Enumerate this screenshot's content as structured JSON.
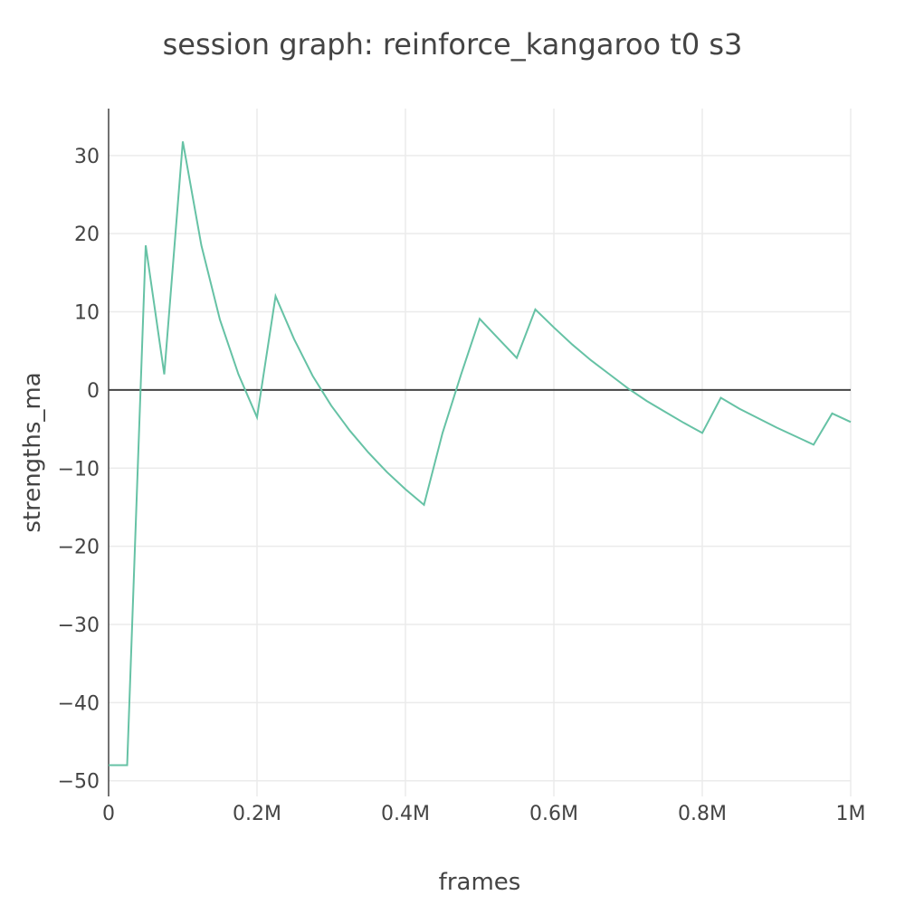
{
  "chart_data": {
    "type": "line",
    "title": "session graph: reinforce_kangaroo t0 s3",
    "xlabel": "frames",
    "ylabel": "strengths_ma",
    "xlim": [
      0,
      1000000
    ],
    "ylim": [
      -52,
      36
    ],
    "grid": true,
    "legend": "none",
    "x_ticks": [
      {
        "value": 0,
        "label": "0"
      },
      {
        "value": 200000,
        "label": "0.2M"
      },
      {
        "value": 400000,
        "label": "0.4M"
      },
      {
        "value": 600000,
        "label": "0.6M"
      },
      {
        "value": 800000,
        "label": "0.8M"
      },
      {
        "value": 1000000,
        "label": "1M"
      }
    ],
    "y_ticks": [
      {
        "value": 30,
        "label": "30"
      },
      {
        "value": 20,
        "label": "20"
      },
      {
        "value": 10,
        "label": "10"
      },
      {
        "value": 0,
        "label": "0"
      },
      {
        "value": -10,
        "label": "−10"
      },
      {
        "value": -20,
        "label": "−20"
      },
      {
        "value": -30,
        "label": "−30"
      },
      {
        "value": -40,
        "label": "−40"
      },
      {
        "value": -50,
        "label": "−50"
      }
    ],
    "series": [
      {
        "color": "#66c2a5",
        "points": [
          [
            0,
            -48
          ],
          [
            25000,
            -48
          ],
          [
            50000,
            18.5
          ],
          [
            75000,
            2
          ],
          [
            100000,
            31.8
          ],
          [
            125000,
            18.5
          ],
          [
            150000,
            9
          ],
          [
            175000,
            2
          ],
          [
            200000,
            -3.5
          ],
          [
            225000,
            12
          ],
          [
            250000,
            6.5
          ],
          [
            275000,
            1.8
          ],
          [
            300000,
            -2
          ],
          [
            325000,
            -5.2
          ],
          [
            350000,
            -8
          ],
          [
            375000,
            -10.5
          ],
          [
            400000,
            -12.7
          ],
          [
            425000,
            -14.7
          ],
          [
            450000,
            -5.5
          ],
          [
            475000,
            2
          ],
          [
            500000,
            9.1
          ],
          [
            525000,
            6.6
          ],
          [
            550000,
            4.1
          ],
          [
            575000,
            10.3
          ],
          [
            600000,
            8
          ],
          [
            625000,
            5.8
          ],
          [
            650000,
            3.8
          ],
          [
            675000,
            2
          ],
          [
            700000,
            0.2
          ],
          [
            725000,
            -1.4
          ],
          [
            750000,
            -2.8
          ],
          [
            775000,
            -4.2
          ],
          [
            800000,
            -5.5
          ],
          [
            825000,
            -1
          ],
          [
            850000,
            -2.4
          ],
          [
            875000,
            -3.6
          ],
          [
            900000,
            -4.8
          ],
          [
            925000,
            -5.9
          ],
          [
            950000,
            -7
          ],
          [
            975000,
            -3
          ],
          [
            1000000,
            -4.1
          ]
        ]
      }
    ]
  }
}
